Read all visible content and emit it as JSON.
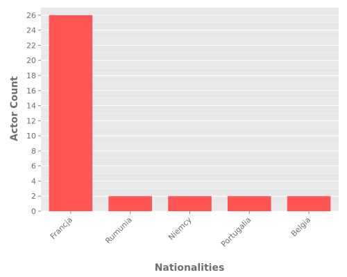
{
  "chart_data": {
    "type": "bar",
    "title": "",
    "xlabel": "Nationalities",
    "ylabel": "Actor Count",
    "categories": [
      "Francja",
      "Rumunia",
      "Niemcy",
      "Portugalia",
      "Belgia"
    ],
    "values": [
      26,
      2,
      2,
      2,
      2
    ],
    "ylim": [
      0,
      27
    ],
    "yticks": [
      0,
      2,
      4,
      6,
      8,
      10,
      12,
      14,
      16,
      18,
      20,
      22,
      24,
      26
    ],
    "grid": true,
    "legend": "none",
    "colors": {
      "bar": "#ff5555",
      "panel_background": "#e8e8e8",
      "grid": "#ffffff",
      "text": "#6e6e6e"
    }
  }
}
